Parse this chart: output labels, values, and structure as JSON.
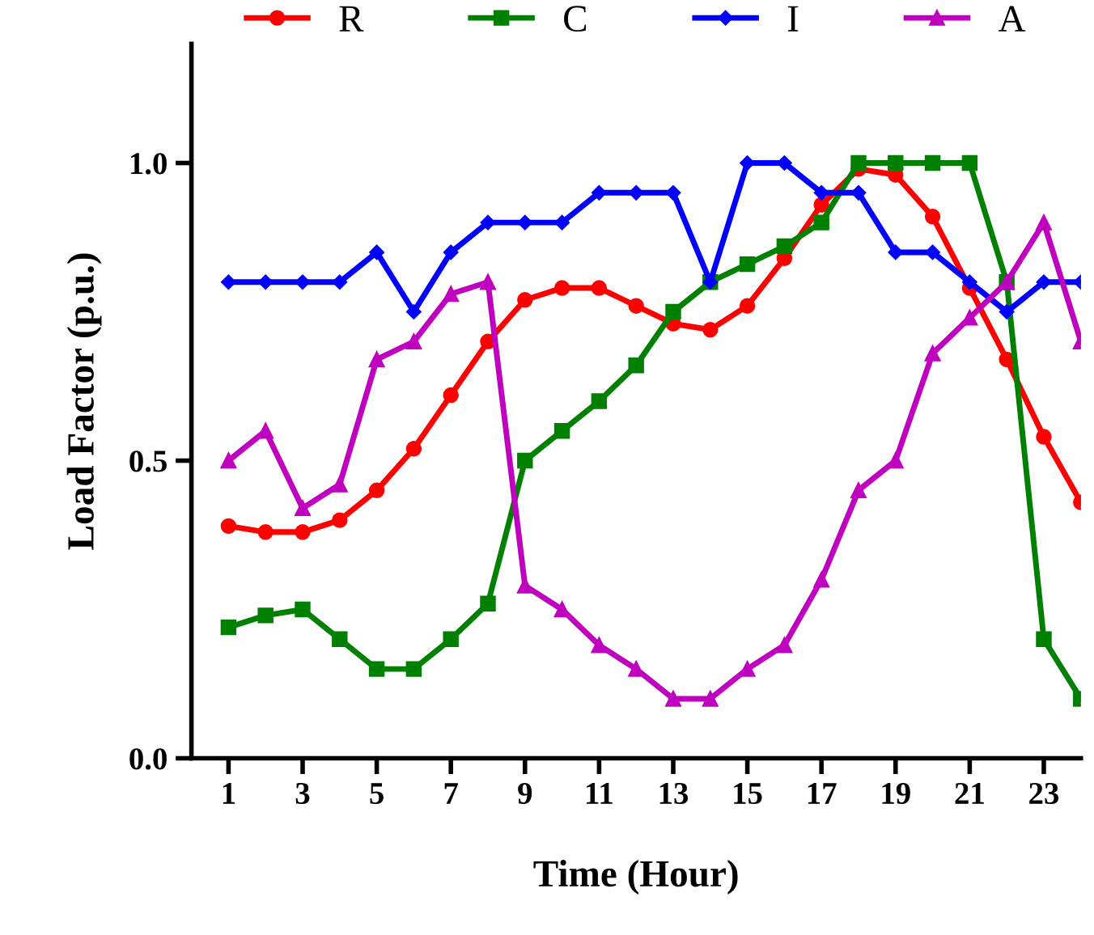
{
  "chart_data": {
    "type": "line",
    "xlabel": "Time (Hour)",
    "ylabel": "Load Factor (p.u.)",
    "x": [
      1,
      2,
      3,
      4,
      5,
      6,
      7,
      8,
      9,
      10,
      11,
      12,
      13,
      14,
      15,
      16,
      17,
      18,
      19,
      20,
      21,
      22,
      23,
      24
    ],
    "series": [
      {
        "name": "R",
        "color": "#ff0000",
        "marker": "circle",
        "values": [
          0.39,
          0.38,
          0.38,
          0.4,
          0.45,
          0.52,
          0.61,
          0.7,
          0.77,
          0.79,
          0.79,
          0.76,
          0.73,
          0.72,
          0.76,
          0.84,
          0.93,
          0.99,
          0.98,
          0.91,
          0.79,
          0.67,
          0.54,
          0.43
        ]
      },
      {
        "name": "C",
        "color": "#008000",
        "marker": "square",
        "values": [
          0.22,
          0.24,
          0.25,
          0.2,
          0.15,
          0.15,
          0.2,
          0.26,
          0.5,
          0.55,
          0.6,
          0.66,
          0.75,
          0.8,
          0.83,
          0.86,
          0.9,
          1.0,
          1.0,
          1.0,
          1.0,
          0.8,
          0.2,
          0.1
        ]
      },
      {
        "name": "I",
        "color": "#0000ff",
        "marker": "diamond",
        "values": [
          0.8,
          0.8,
          0.8,
          0.8,
          0.85,
          0.75,
          0.85,
          0.9,
          0.9,
          0.9,
          0.95,
          0.95,
          0.95,
          0.8,
          1.0,
          1.0,
          0.95,
          0.95,
          0.85,
          0.85,
          0.8,
          0.75,
          0.8,
          0.8
        ]
      },
      {
        "name": "A",
        "color": "#bf00bf",
        "marker": "triangle",
        "values": [
          0.5,
          0.55,
          0.42,
          0.46,
          0.67,
          0.7,
          0.78,
          0.8,
          0.29,
          0.25,
          0.19,
          0.15,
          0.1,
          0.1,
          0.15,
          0.19,
          0.3,
          0.45,
          0.5,
          0.68,
          0.74,
          0.8,
          0.9,
          0.7
        ]
      }
    ],
    "xlim": [
      0,
      24
    ],
    "xticks": [
      1,
      3,
      5,
      7,
      9,
      11,
      13,
      15,
      17,
      19,
      21,
      23
    ],
    "ylim": [
      0,
      1.2
    ],
    "yticks": [
      {
        "value": 0,
        "label": "0.0"
      },
      {
        "value": 0.5,
        "label": "0.5"
      },
      {
        "value": 1.0,
        "label": "1.0"
      }
    ],
    "grid": false,
    "legend": "top",
    "line_style": "solid"
  }
}
